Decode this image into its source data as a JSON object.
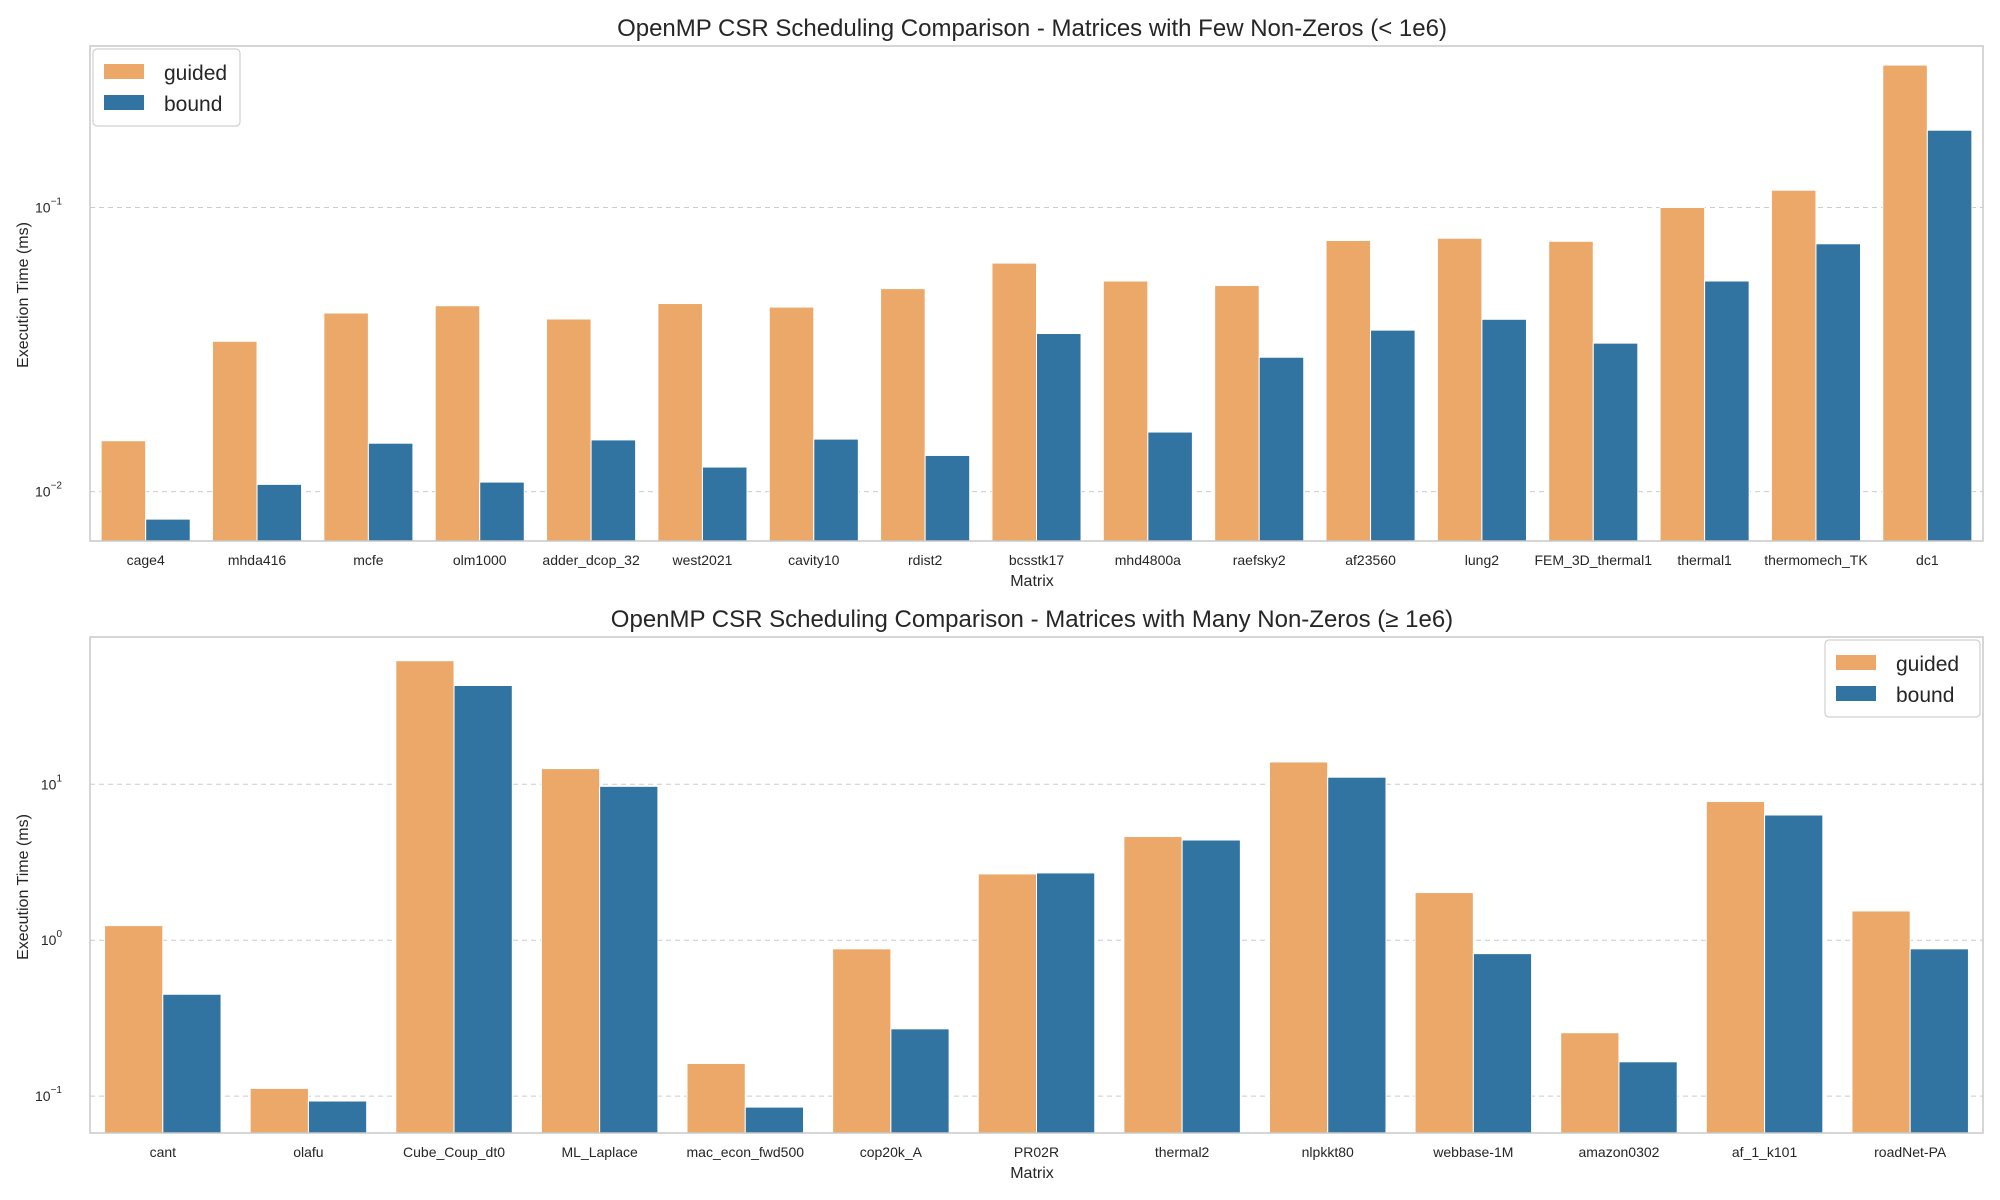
{
  "chart_data": [
    {
      "type": "bar",
      "title": "OpenMP CSR Scheduling Comparison - Matrices with Few Non-Zeros (< 1e6)",
      "xlabel": "Matrix",
      "ylabel": "Execution Time (ms)",
      "yscale": "log",
      "ylim": [
        0.0067,
        0.37
      ],
      "yticks": [
        {
          "value": 0.01,
          "mantissa": "10",
          "exponent": "−2"
        },
        {
          "value": 0.1,
          "mantissa": "10",
          "exponent": "−1"
        }
      ],
      "grid": "horizontal",
      "legend_position": "top-left",
      "categories": [
        "cage4",
        "mhda416",
        "mcfe",
        "olm1000",
        "adder_dcop_32",
        "west2021",
        "cavity10",
        "rdist2",
        "bcsstk17",
        "mhd4800a",
        "raefsky2",
        "af23560",
        "lung2",
        "FEM_3D_thermal1",
        "thermal1",
        "thermomech_TK",
        "dc1"
      ],
      "series": [
        {
          "name": "guided",
          "color": "#eba868",
          "values": [
            0.0151,
            0.0338,
            0.0425,
            0.0451,
            0.0405,
            0.0459,
            0.0446,
            0.0518,
            0.0637,
            0.0551,
            0.0531,
            0.0765,
            0.0779,
            0.076,
            0.1,
            0.115,
            0.317
          ]
        },
        {
          "name": "bound",
          "color": "#3274a1",
          "values": [
            0.008,
            0.0106,
            0.0148,
            0.0108,
            0.0152,
            0.0122,
            0.0153,
            0.0134,
            0.036,
            0.0162,
            0.0297,
            0.037,
            0.0404,
            0.0333,
            0.0551,
            0.0745,
            0.187
          ]
        }
      ]
    },
    {
      "type": "bar",
      "title": "OpenMP CSR Scheduling Comparison - Matrices with Many Non-Zeros (≥ 1e6)",
      "xlabel": "Matrix",
      "ylabel": "Execution Time (ms)",
      "yscale": "log",
      "ylim": [
        0.058,
        88
      ],
      "yticks": [
        {
          "value": 0.1,
          "mantissa": "10",
          "exponent": "−1"
        },
        {
          "value": 1,
          "mantissa": "10",
          "exponent": "0"
        },
        {
          "value": 10,
          "mantissa": "10",
          "exponent": "1"
        }
      ],
      "grid": "horizontal",
      "legend_position": "top-right",
      "categories": [
        "cant",
        "olafu",
        "Cube_Coup_dt0",
        "ML_Laplace",
        "mac_econ_fwd500",
        "cop20k_A",
        "PR02R",
        "thermal2",
        "nlpkkt80",
        "webbase-1M",
        "amazon0302",
        "af_1_k101",
        "roadNet-PA"
      ],
      "series": [
        {
          "name": "guided",
          "color": "#eba868",
          "values": [
            1.24,
            0.112,
            62.0,
            12.6,
            0.162,
            0.88,
            2.66,
            4.62,
            13.9,
            2.02,
            0.255,
            7.75,
            1.54
          ]
        },
        {
          "name": "bound",
          "color": "#3274a1",
          "values": [
            0.45,
            0.093,
            43.0,
            9.7,
            0.085,
            0.27,
            2.7,
            4.39,
            11.1,
            0.82,
            0.166,
            6.35,
            0.88
          ]
        }
      ]
    }
  ]
}
